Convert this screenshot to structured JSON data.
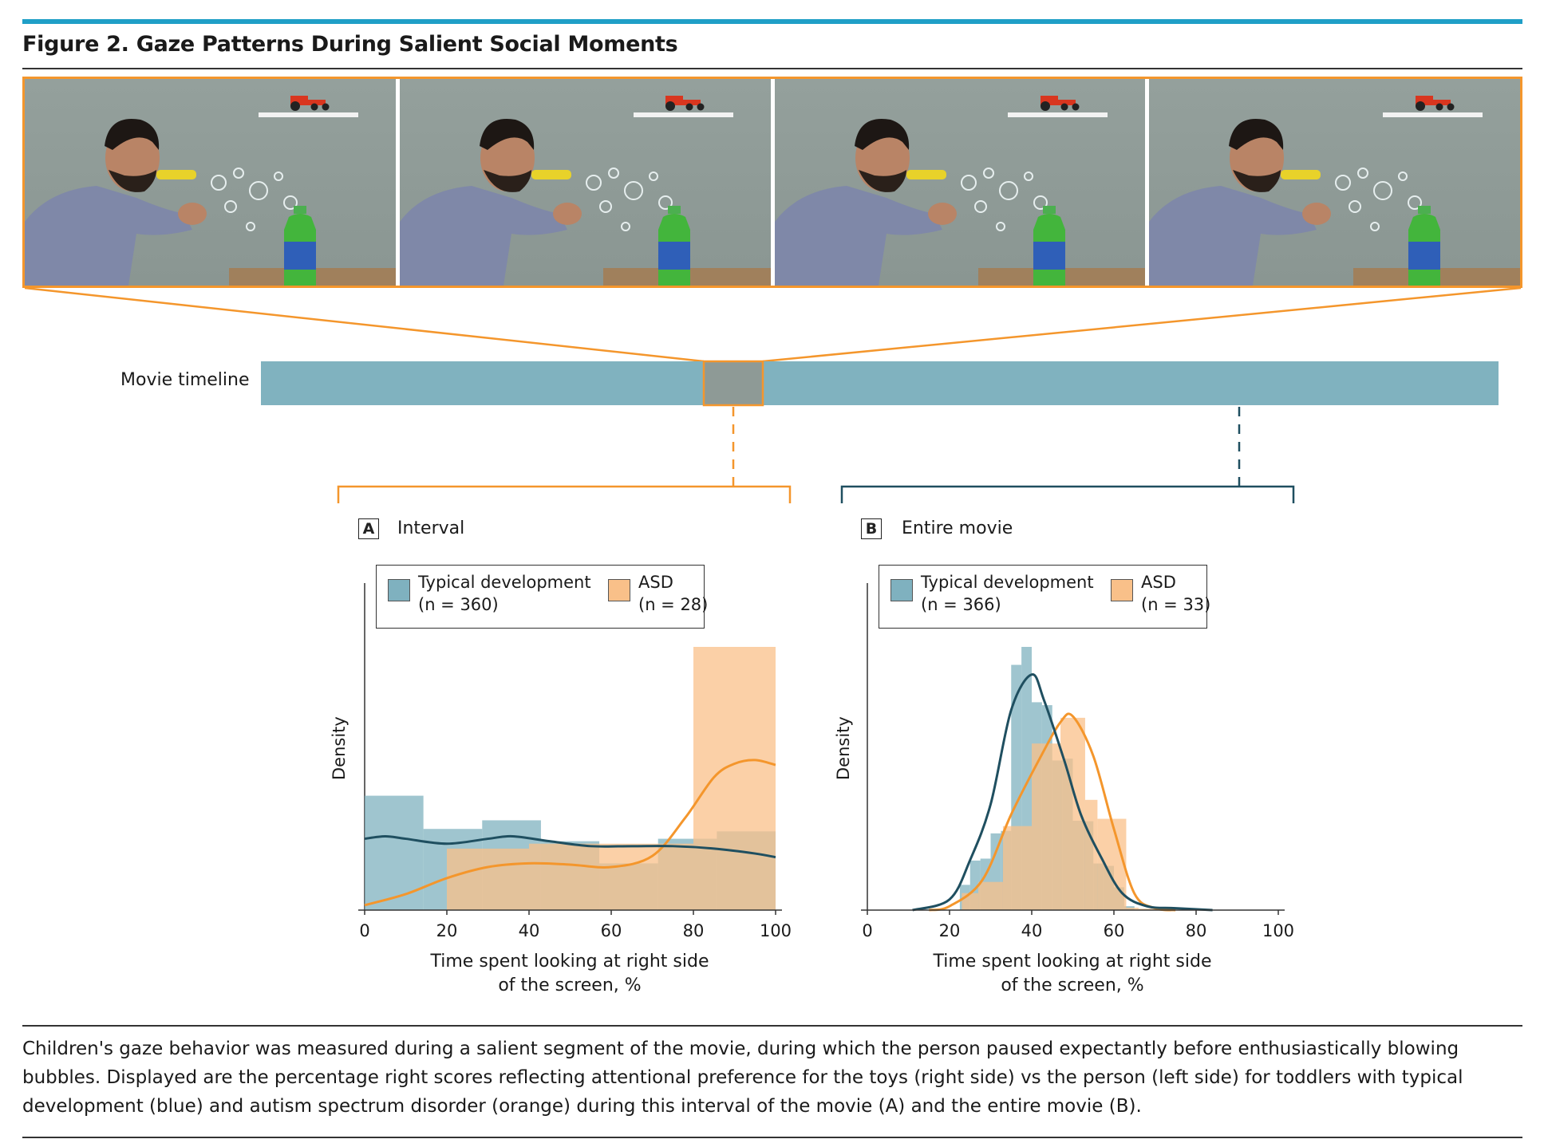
{
  "figure": {
    "title": "Figure 2. Gaze Patterns During Salient Social Moments",
    "timeline_label": "Movie timeline",
    "caption": "Children's gaze behavior was measured during a salient segment of the movie, during which the person paused expectantly before enthusiastically blowing bubbles. Displayed are the percentage right scores reflecting attentional preference for the toys (right side) vs the person (left side) for toddlers with typical development (blue) and autism spectrum disorder (orange) during this interval of the movie (A) and the entire movie (B).",
    "frames": [
      "photo-frame-1",
      "photo-frame-2",
      "photo-frame-3",
      "photo-frame-4"
    ]
  },
  "colors": {
    "accent_orange": "#f4962c",
    "td_blue": "#7fb1bf",
    "td_line": "#1f4f60",
    "asd_fill": "#f9c089",
    "asd_line": "#f4962c",
    "overlap": "#c4a583",
    "timeline": "#80b2bf",
    "topbar": "#1f9fc7"
  },
  "panels": {
    "a": {
      "letter": "A",
      "name": "Interval",
      "legend": {
        "td_label": "Typical development",
        "td_n": "(n = 360)",
        "asd_label": "ASD",
        "asd_n": "(n = 28)"
      },
      "ylabel": "Density",
      "xlabel_1": "Time spent looking at right side",
      "xlabel_2": "of the screen, %",
      "ticks": [
        "0",
        "20",
        "40",
        "60",
        "80",
        "100"
      ]
    },
    "b": {
      "letter": "B",
      "name": "Entire movie",
      "legend": {
        "td_label": "Typical development",
        "td_n": "(n = 366)",
        "asd_label": "ASD",
        "asd_n": "(n = 33)"
      },
      "ylabel": "Density",
      "xlabel_1": "Time spent looking at right side",
      "xlabel_2": "of the screen, %",
      "ticks": [
        "0",
        "20",
        "40",
        "60",
        "80",
        "100"
      ]
    }
  },
  "chart_data": [
    {
      "type": "histogram",
      "panel": "A",
      "title": "Interval",
      "xlabel": "Time spent looking at right side of the screen, %",
      "ylabel": "Density",
      "xlim": [
        0,
        100
      ],
      "y_ticks_shown": false,
      "series": [
        {
          "name": "Typical development (n = 360)",
          "bins": [
            [
              0,
              14.3,
              0.0093
            ],
            [
              14.3,
              28.6,
              0.0066
            ],
            [
              28.6,
              42.9,
              0.0073
            ],
            [
              42.9,
              57.1,
              0.0056
            ],
            [
              57.1,
              71.4,
              0.0038
            ],
            [
              71.4,
              85.7,
              0.0058
            ],
            [
              85.7,
              100,
              0.0064
            ]
          ],
          "kde": [
            [
              0,
              0.0058
            ],
            [
              5,
              0.006
            ],
            [
              10,
              0.0058
            ],
            [
              20,
              0.0054
            ],
            [
              30,
              0.0058
            ],
            [
              36,
              0.006
            ],
            [
              45,
              0.0056
            ],
            [
              55,
              0.0052
            ],
            [
              65,
              0.0052
            ],
            [
              75,
              0.0052
            ],
            [
              85,
              0.005
            ],
            [
              95,
              0.0046
            ],
            [
              100,
              0.0043
            ]
          ]
        },
        {
          "name": "ASD (n = 28)",
          "bins": [
            [
              20,
              40,
              0.005
            ],
            [
              40,
              60,
              0.0054
            ],
            [
              60,
              80,
              0.0054
            ],
            [
              80,
              100,
              0.0214
            ]
          ],
          "kde": [
            [
              0,
              0.0004
            ],
            [
              10,
              0.0013
            ],
            [
              20,
              0.0026
            ],
            [
              30,
              0.0035
            ],
            [
              40,
              0.0038
            ],
            [
              50,
              0.0037
            ],
            [
              60,
              0.0035
            ],
            [
              70,
              0.0044
            ],
            [
              78,
              0.0075
            ],
            [
              85,
              0.0108
            ],
            [
              90,
              0.0119
            ],
            [
              95,
              0.0122
            ],
            [
              100,
              0.0118
            ]
          ]
        }
      ]
    },
    {
      "type": "histogram",
      "panel": "B",
      "title": "Entire movie",
      "xlabel": "Time spent looking at right side of the screen, %",
      "ylabel": "Density",
      "xlim": [
        0,
        100
      ],
      "y_ticks_shown": false,
      "series": [
        {
          "name": "Typical development (n = 366)",
          "bins": [
            [
              22.5,
              25,
              0.0052
            ],
            [
              25,
              27.5,
              0.0102
            ],
            [
              27.5,
              30,
              0.0106
            ],
            [
              30,
              32.5,
              0.0158
            ],
            [
              32.5,
              35,
              0.0163
            ],
            [
              35,
              37.5,
              0.0505
            ],
            [
              37.5,
              40,
              0.0542
            ],
            [
              40,
              42.5,
              0.0428
            ],
            [
              42.5,
              45,
              0.0422
            ],
            [
              45,
              47.5,
              0.0308
            ],
            [
              47.5,
              50,
              0.0312
            ],
            [
              50,
              52.5,
              0.0184
            ],
            [
              52.5,
              55,
              0.0183
            ],
            [
              55,
              57.5,
              0.0096
            ],
            [
              57.5,
              60,
              0.0091
            ],
            [
              60,
              62.5,
              0.0047
            ],
            [
              62.5,
              65,
              0.0008
            ],
            [
              72.5,
              75,
              0.0005
            ]
          ],
          "kde": [
            [
              11,
              0.0
            ],
            [
              20,
              0.0022
            ],
            [
              25,
              0.0103
            ],
            [
              30,
              0.0218
            ],
            [
              35,
              0.0412
            ],
            [
              40,
              0.0485
            ],
            [
              43,
              0.0432
            ],
            [
              48,
              0.0306
            ],
            [
              52,
              0.0196
            ],
            [
              57,
              0.0107
            ],
            [
              62,
              0.0035
            ],
            [
              68,
              0.0008
            ],
            [
              75,
              0.0004
            ],
            [
              84,
              0.0
            ]
          ]
        },
        {
          "name": "ASD (n = 33)",
          "bins": [
            [
              23,
              27,
              0.0035
            ],
            [
              27,
              33,
              0.0058
            ],
            [
              33,
              40,
              0.0173
            ],
            [
              40,
              47,
              0.0343
            ],
            [
              47,
              53,
              0.0396
            ],
            [
              53,
              56,
              0.0227
            ],
            [
              56,
              60,
              0.0188
            ],
            [
              60,
              63,
              0.0188
            ],
            [
              63,
              66,
              0.0005
            ],
            [
              66,
              70,
              0.0003
            ]
          ],
          "kde": [
            [
              15,
              0.0
            ],
            [
              20,
              0.0008
            ],
            [
              28,
              0.0062
            ],
            [
              35,
              0.0197
            ],
            [
              42,
              0.0313
            ],
            [
              47,
              0.0387
            ],
            [
              50,
              0.0399
            ],
            [
              55,
              0.0317
            ],
            [
              60,
              0.0167
            ],
            [
              65,
              0.0034
            ],
            [
              70,
              0.0004
            ],
            [
              75,
              0.0
            ]
          ]
        }
      ]
    }
  ]
}
